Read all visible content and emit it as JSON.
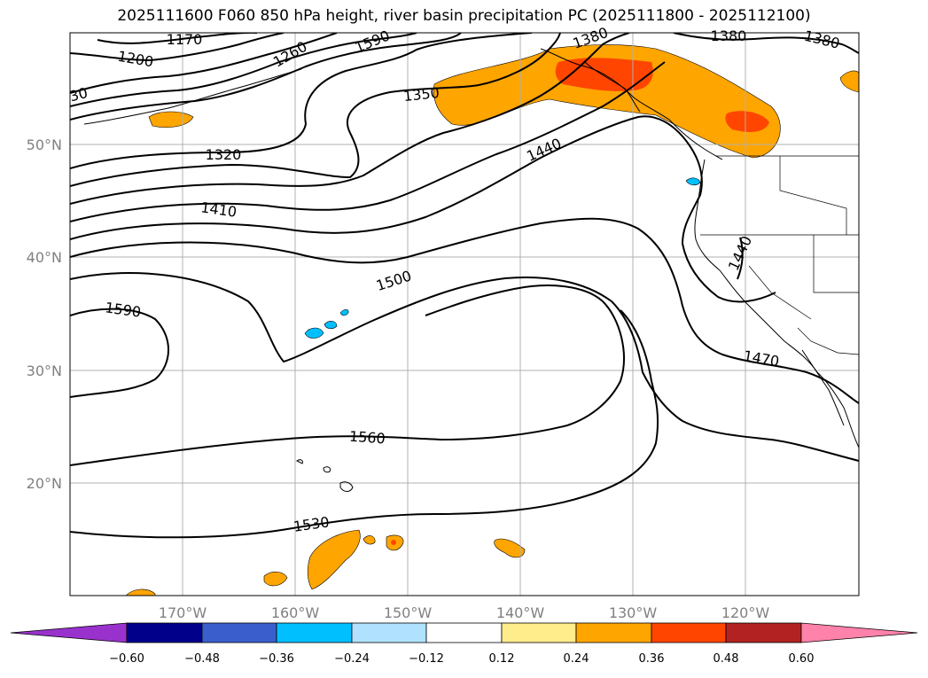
{
  "title": "2025111600 F060 850 hPa height, river basin precipitation PC (2025111800 - 2025112100)",
  "colors": {
    "contour": "#000000",
    "grid": "#b0b0b0",
    "tick_label": "#808080",
    "pos_orange": "#ffa500",
    "pos_redorange": "#ff4500"
  },
  "longitude_labels": [
    "170°W",
    "160°W",
    "150°W",
    "140°W",
    "130°W",
    "120°W"
  ],
  "latitude_labels": [
    "50°N",
    "40°N",
    "30°N",
    "20°N"
  ],
  "contour_labels": [
    {
      "id": "1170",
      "text": "1170"
    },
    {
      "id": "1200",
      "text": "1200"
    },
    {
      "id": "1260",
      "text": "1260"
    },
    {
      "id": "1590a",
      "text": "1590"
    },
    {
      "id": "1380a",
      "text": "1380"
    },
    {
      "id": "1380b",
      "text": "1380"
    },
    {
      "id": "1380c",
      "text": "1380"
    },
    {
      "id": "30",
      "text": "30"
    },
    {
      "id": "1350",
      "text": "1350"
    },
    {
      "id": "1320",
      "text": "1320"
    },
    {
      "id": "1440a",
      "text": "1440"
    },
    {
      "id": "1410",
      "text": "1410"
    },
    {
      "id": "1440b",
      "text": "1440"
    },
    {
      "id": "1500",
      "text": "1500"
    },
    {
      "id": "1590b",
      "text": "1590"
    },
    {
      "id": "1470",
      "text": "1470"
    },
    {
      "id": "1560",
      "text": "1560"
    },
    {
      "id": "1530",
      "text": "1530"
    }
  ],
  "colorbar": {
    "ticks": [
      "−0.60",
      "−0.48",
      "−0.36",
      "−0.24",
      "−0.12",
      "0.12",
      "0.24",
      "0.36",
      "0.48",
      "0.60"
    ],
    "colors": [
      "#9932cc",
      "#00008b",
      "#3a5fcd",
      "#00bfff",
      "#b0e2ff",
      "#ffffff",
      "#ffec8b",
      "#ffa500",
      "#ff4500",
      "#b22222",
      "#ff82ab"
    ]
  }
}
